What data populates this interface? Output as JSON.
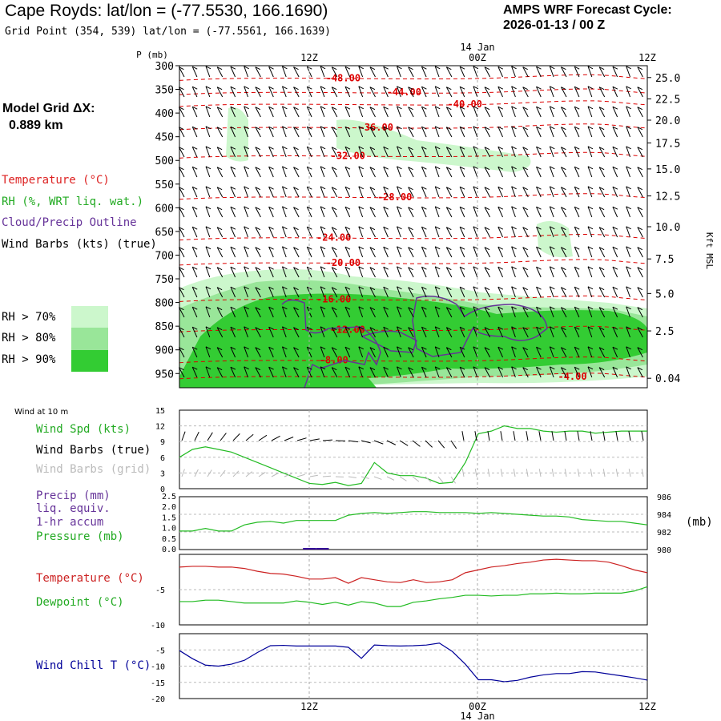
{
  "header": {
    "title": "Cape Royds:  lat/lon = (-77.5530, 166.1690)",
    "subtitle": "Grid Point (354, 539) lat/lon = (-77.5561, 166.1639)",
    "cycle_line1": "AMPS WRF Forecast Cycle:",
    "cycle_line2": "2026-01-13 / 00  Z",
    "model_grid_label": "Model Grid ΔX:",
    "model_grid_value": "0.889 km"
  },
  "time_axis": {
    "date_label": "14 Jan",
    "ticks": [
      "12Z",
      "00Z",
      "12Z"
    ]
  },
  "legend": {
    "temperature": "Temperature (°C)",
    "rh": "RH (%, WRT liq. wat.)",
    "cloud": "Cloud/Precip Outline",
    "wind": "Wind Barbs (kts) (true)",
    "rh70": "RH > 70%",
    "rh80": "RH > 80%",
    "rh90": "RH > 90%",
    "colors": {
      "rh70": "#ccf7cc",
      "rh80": "#99e699",
      "rh90": "#33cc33",
      "temp": "#dd0000",
      "cloud": "#663399"
    }
  },
  "panel_wind": {
    "title": "Wind at 10 m",
    "spd_label": "Wind Spd (kts)",
    "barbs_true": "Wind Barbs (true)",
    "barbs_grid": "Wind Barbs (grid)"
  },
  "panel_pressure": {
    "precip_label1": "Precip (mm)",
    "precip_label2": "liq. equiv.",
    "precip_label3": "1-hr accum",
    "pressure_label": "Pressure (mb)",
    "right_unit": "(mb)"
  },
  "panel_temp": {
    "temp_label": "Temperature (°C)",
    "dew_label": "Dewpoint (°C)"
  },
  "panel_chill": {
    "label": "Wind Chill T (°C)"
  },
  "chart_data": [
    {
      "type": "heatmap",
      "title": "Time-height cross section",
      "ylabel": "P (mb)",
      "y_ticks": [
        "300",
        "350",
        "400",
        "450",
        "500",
        "550",
        "600",
        "650",
        "700",
        "750",
        "800",
        "850",
        "900",
        "950"
      ],
      "ylim": [
        300,
        980
      ],
      "right_axis_label": "Kft MSL",
      "right_ticks": [
        "25.0",
        "22.5",
        "20.0",
        "17.5",
        "15.0",
        "12.5",
        "10.0",
        "7.5",
        "5.0",
        "2.5",
        "0.04"
      ],
      "right_tick_pressures": [
        325,
        370,
        415,
        463,
        518,
        575,
        640,
        708,
        781,
        860,
        960
      ],
      "temperature_contours": [
        {
          "label": "-48.00",
          "p": 326,
          "t": 0.35
        },
        {
          "label": "-44.00",
          "p": 356,
          "t": 0.48
        },
        {
          "label": "-40.00",
          "p": 381,
          "t": 0.61
        },
        {
          "label": "-36.00",
          "p": 430,
          "t": 0.42
        },
        {
          "label": "-32.00",
          "p": 490,
          "t": 0.36
        },
        {
          "label": "-28.00",
          "p": 577,
          "t": 0.46
        },
        {
          "label": "-24.00",
          "p": 663,
          "t": 0.33
        },
        {
          "label": "-20.00",
          "p": 716,
          "t": 0.35
        },
        {
          "label": "-16.00",
          "p": 793,
          "t": 0.33
        },
        {
          "label": "-12.00",
          "p": 857,
          "t": 0.36
        },
        {
          "label": "-8.00",
          "p": 922,
          "t": 0.33
        },
        {
          "label": "-4.00",
          "p": 956,
          "t": 0.84
        }
      ]
    },
    {
      "type": "line",
      "title": "Wind at 10 m",
      "ylabel": "kts",
      "y_ticks": [
        "0",
        "3",
        "6",
        "9",
        "12",
        "15"
      ],
      "ylim": [
        0,
        15
      ],
      "series": [
        {
          "name": "Wind Spd (kts)",
          "color": "#22bb22",
          "values": [
            6,
            7.5,
            8,
            7.5,
            7,
            6,
            5,
            4,
            3,
            2,
            1,
            0.8,
            1.2,
            0.6,
            1,
            5,
            3,
            2.5,
            2.5,
            2,
            1,
            1.2,
            5,
            10.5,
            11,
            12,
            11.5,
            11.5,
            11,
            10.8,
            11,
            11,
            10.6,
            10.8,
            11,
            11,
            11
          ]
        }
      ]
    },
    {
      "type": "line",
      "title": "Pressure",
      "ylabel": "mb",
      "y_ticks": [
        "980",
        "982",
        "984",
        "986"
      ],
      "ylim": [
        980,
        986
      ],
      "precip_ticks": [
        "0.0",
        "0.5",
        "1.0",
        "1.5",
        "2.0",
        "2.5"
      ],
      "series": [
        {
          "name": "Pressure (mb)",
          "color": "#22bb22",
          "values": [
            982.1,
            982.1,
            982.4,
            982.1,
            982.1,
            982.8,
            983.1,
            983.2,
            983.0,
            983.3,
            983.3,
            983.3,
            983.3,
            983.9,
            984.1,
            984.2,
            984.1,
            984.2,
            984.3,
            984.3,
            984.2,
            984.2,
            984.2,
            984.1,
            984.2,
            984.1,
            984.0,
            983.9,
            983.8,
            983.8,
            983.7,
            983.4,
            983.3,
            983.2,
            983.2,
            983.0,
            982.8
          ]
        },
        {
          "name": "Precip (mm)",
          "color": "#330099",
          "values": [
            0,
            0,
            0,
            0,
            0,
            0,
            0,
            0,
            0,
            0,
            0.02,
            0.02,
            0,
            0,
            0,
            0,
            0,
            0,
            0,
            0,
            0,
            0,
            0,
            0,
            0,
            0,
            0,
            0,
            0,
            0,
            0,
            0,
            0,
            0,
            0,
            0,
            0
          ]
        }
      ]
    },
    {
      "type": "line",
      "title": "Temperature / Dewpoint",
      "ylabel": "°C",
      "y_ticks": [
        "-5",
        "-10"
      ],
      "ylim": [
        -10,
        0
      ],
      "series": [
        {
          "name": "Temperature (°C)",
          "color": "#cc2222",
          "values": [
            -1.8,
            -1.7,
            -1.7,
            -1.8,
            -1.8,
            -2.0,
            -2.4,
            -2.7,
            -2.8,
            -3.1,
            -3.5,
            -3.5,
            -3.3,
            -4.1,
            -3.3,
            -3.6,
            -3.9,
            -4.0,
            -3.6,
            -4.0,
            -3.9,
            -3.6,
            -2.6,
            -2.2,
            -1.8,
            -1.6,
            -1.3,
            -1.1,
            -0.8,
            -0.7,
            -0.8,
            -0.9,
            -0.9,
            -1.1,
            -1.6,
            -2.2,
            -2.6
          ]
        },
        {
          "name": "Dewpoint (°C)",
          "color": "#22bb22",
          "values": [
            -6.7,
            -6.7,
            -6.5,
            -6.5,
            -6.7,
            -6.9,
            -6.9,
            -6.9,
            -6.9,
            -6.6,
            -6.8,
            -7.1,
            -6.8,
            -7.2,
            -6.7,
            -6.9,
            -7.4,
            -7.4,
            -6.8,
            -6.6,
            -6.3,
            -6.1,
            -5.8,
            -5.8,
            -5.9,
            -5.8,
            -5.8,
            -5.6,
            -5.6,
            -5.5,
            -5.6,
            -5.6,
            -5.5,
            -5.5,
            -5.5,
            -5.2,
            -4.6
          ]
        }
      ]
    },
    {
      "type": "line",
      "title": "Wind Chill",
      "ylabel": "°C",
      "y_ticks": [
        "-5",
        "-10",
        "-15",
        "-20"
      ],
      "ylim": [
        -20,
        0
      ],
      "series": [
        {
          "name": "Wind Chill T (°C)",
          "color": "#000099",
          "values": [
            -5.2,
            -7.7,
            -9.7,
            -10.0,
            -9.4,
            -8.2,
            -5.8,
            -3.7,
            -3.6,
            -3.8,
            -3.8,
            -3.8,
            -3.8,
            -4.2,
            -7.6,
            -3.5,
            -3.7,
            -3.8,
            -3.7,
            -3.5,
            -2.9,
            -5.5,
            -9.4,
            -14.2,
            -14.2,
            -14.8,
            -14.4,
            -13.4,
            -12.7,
            -12.3,
            -12.3,
            -11.7,
            -11.8,
            -12.4,
            -13.0,
            -13.6,
            -14.3
          ]
        }
      ]
    }
  ]
}
